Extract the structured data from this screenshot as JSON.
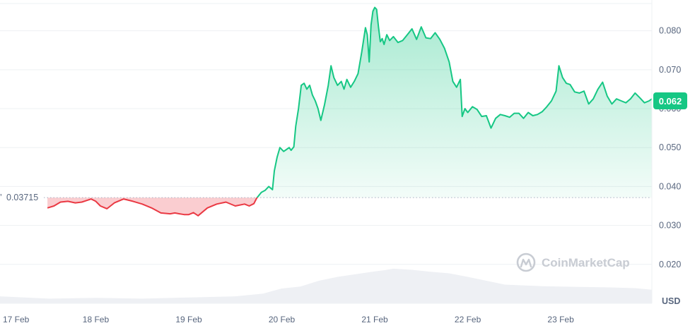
{
  "chart_data": {
    "type": "line",
    "unit": "USD",
    "baseline": {
      "value": 0.03715,
      "label": "0.03715"
    },
    "current": {
      "value": 0.062,
      "label": "0.062"
    },
    "ylim": [
      0.01,
      0.087
    ],
    "y_ticks": [
      {
        "value": 0.08,
        "label": "0.080"
      },
      {
        "value": 0.07,
        "label": "0.070"
      },
      {
        "value": 0.06,
        "label": "0.060"
      },
      {
        "value": 0.05,
        "label": "0.050"
      },
      {
        "value": 0.04,
        "label": "0.040"
      },
      {
        "value": 0.03,
        "label": "0.030"
      },
      {
        "value": 0.02,
        "label": "0.020"
      }
    ],
    "x_ticks": [
      {
        "day": 17.0,
        "label": "17 Feb"
      },
      {
        "day": 18.0,
        "label": "18 Feb"
      },
      {
        "day": 19.0,
        "label": "19 Feb"
      },
      {
        "day": 20.0,
        "label": "20 Feb"
      },
      {
        "day": 21.0,
        "label": "21 Feb"
      },
      {
        "day": 22.0,
        "label": "22 Feb"
      },
      {
        "day": 23.0,
        "label": "23 Feb"
      }
    ],
    "xlim": [
      16.97,
      23.98
    ],
    "series": [
      {
        "x": [
          17.48,
          17.55,
          17.62,
          17.7,
          17.78,
          17.85,
          17.9,
          17.95,
          18.0,
          18.05,
          18.12,
          18.2,
          18.3,
          18.4,
          18.5,
          18.6,
          18.7,
          18.8,
          18.85,
          18.9,
          18.95,
          19.0,
          19.05,
          19.1,
          19.2,
          19.3,
          19.4,
          19.5,
          19.6,
          19.65,
          19.7,
          19.73,
          19.78,
          19.82,
          19.86,
          19.9,
          19.92,
          19.95,
          19.98,
          20.02,
          20.05,
          20.08,
          20.1,
          20.13,
          20.15,
          20.18,
          20.21,
          20.24,
          20.27,
          20.3,
          20.33,
          20.36,
          20.39,
          20.42,
          20.46,
          20.5,
          20.53,
          20.56,
          20.6,
          20.64,
          20.67,
          20.7,
          20.74,
          20.78,
          20.82,
          20.86,
          20.9,
          20.92,
          20.94,
          20.96,
          20.98,
          21.0,
          21.02,
          21.04,
          21.06,
          21.08,
          21.1,
          21.13,
          21.16,
          21.2,
          21.25,
          21.3,
          21.35,
          21.4,
          21.45,
          21.5,
          21.55,
          21.6,
          21.65,
          21.7,
          21.75,
          21.8,
          21.84,
          21.88,
          21.92,
          21.94,
          21.97,
          22.0,
          22.05,
          22.1,
          22.15,
          22.2,
          22.25,
          22.3,
          22.35,
          22.4,
          22.45,
          22.5,
          22.55,
          22.6,
          22.65,
          22.7,
          22.75,
          22.8,
          22.85,
          22.9,
          22.95,
          22.98,
          23.02,
          23.06,
          23.1,
          23.15,
          23.2,
          23.25,
          23.3,
          23.35,
          23.4,
          23.45,
          23.5,
          23.55,
          23.6,
          23.65,
          23.7,
          23.75,
          23.8,
          23.85,
          23.9,
          23.95,
          23.98
        ],
        "y": [
          0.0345,
          0.035,
          0.036,
          0.0362,
          0.0358,
          0.036,
          0.0364,
          0.0368,
          0.0362,
          0.035,
          0.0343,
          0.0358,
          0.0368,
          0.0362,
          0.0355,
          0.0345,
          0.0332,
          0.033,
          0.0332,
          0.033,
          0.0328,
          0.0328,
          0.0333,
          0.0325,
          0.0345,
          0.0355,
          0.036,
          0.035,
          0.0355,
          0.035,
          0.0356,
          0.037,
          0.0385,
          0.039,
          0.04,
          0.0392,
          0.044,
          0.0475,
          0.05,
          0.049,
          0.0495,
          0.05,
          0.0493,
          0.0502,
          0.0555,
          0.06,
          0.066,
          0.0665,
          0.065,
          0.066,
          0.0635,
          0.062,
          0.06,
          0.057,
          0.061,
          0.066,
          0.071,
          0.068,
          0.066,
          0.067,
          0.065,
          0.0675,
          0.0655,
          0.067,
          0.069,
          0.0745,
          0.0808,
          0.079,
          0.072,
          0.0815,
          0.085,
          0.086,
          0.0855,
          0.081,
          0.0772,
          0.078,
          0.0765,
          0.079,
          0.0775,
          0.0785,
          0.077,
          0.0775,
          0.079,
          0.0805,
          0.0778,
          0.081,
          0.0782,
          0.078,
          0.0795,
          0.0778,
          0.0755,
          0.072,
          0.067,
          0.0655,
          0.0675,
          0.058,
          0.06,
          0.059,
          0.0605,
          0.0598,
          0.058,
          0.0582,
          0.055,
          0.0575,
          0.0585,
          0.0582,
          0.0578,
          0.0588,
          0.0588,
          0.0575,
          0.059,
          0.0582,
          0.0585,
          0.0592,
          0.0605,
          0.062,
          0.0645,
          0.071,
          0.068,
          0.0665,
          0.0662,
          0.0643,
          0.064,
          0.0645,
          0.0612,
          0.0625,
          0.065,
          0.0668,
          0.0632,
          0.0612,
          0.0625,
          0.062,
          0.0615,
          0.0625,
          0.064,
          0.0628,
          0.0615,
          0.062,
          0.0625
        ]
      }
    ],
    "volume": {
      "x": [
        16.97,
        17.5,
        18.0,
        18.5,
        19.0,
        19.5,
        19.8,
        20.0,
        20.2,
        20.4,
        20.6,
        20.8,
        21.0,
        21.1,
        21.2,
        21.4,
        21.6,
        21.8,
        22.0,
        22.2,
        22.4,
        22.6,
        22.8,
        23.0,
        23.2,
        23.5,
        23.8,
        23.98
      ],
      "y": [
        0.0118,
        0.0112,
        0.0114,
        0.0112,
        0.0115,
        0.0118,
        0.0125,
        0.0138,
        0.0143,
        0.0158,
        0.0168,
        0.0175,
        0.0182,
        0.0185,
        0.0189,
        0.0186,
        0.0181,
        0.0177,
        0.0168,
        0.0158,
        0.0148,
        0.0146,
        0.0144,
        0.0143,
        0.0142,
        0.0141,
        0.0139,
        0.0135
      ]
    },
    "colors": {
      "up": "#16c784",
      "down": "#ea3943",
      "grid": "#eef0f3",
      "axis_text": "#58667e",
      "volume": "#eef0f4"
    }
  },
  "watermark": {
    "text": "CoinMarketCap",
    "icon": "coinmarketcap-logo-icon"
  }
}
